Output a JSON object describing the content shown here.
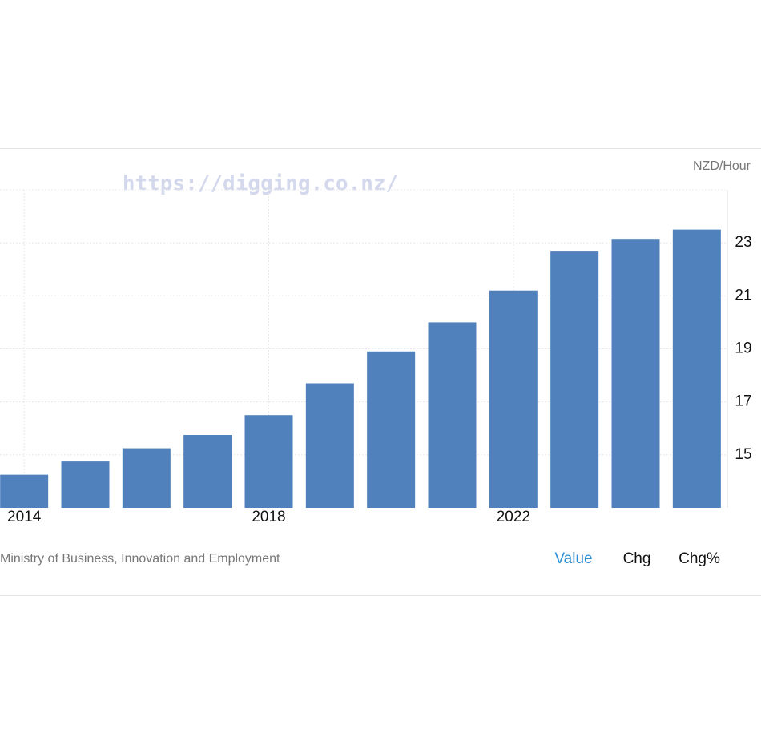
{
  "chart_data": {
    "type": "bar",
    "unit": "NZD/Hour",
    "watermark": "https://digging.co.nz/",
    "source": "Ministry of Business, Innovation and Employment",
    "categories": [
      "2014",
      null,
      null,
      null,
      "2018",
      null,
      null,
      null,
      "2022",
      null,
      null,
      null
    ],
    "values": [
      14.25,
      14.75,
      15.25,
      15.75,
      16.5,
      17.7,
      18.9,
      20,
      21.2,
      22.7,
      23.15,
      23.5
    ],
    "color": "#5081bd",
    "ylim": [
      13,
      25
    ],
    "yticks": [
      15,
      17,
      19,
      21,
      23
    ],
    "grid": true
  },
  "buttons": [
    "Value",
    "Chg",
    "Chg%"
  ]
}
